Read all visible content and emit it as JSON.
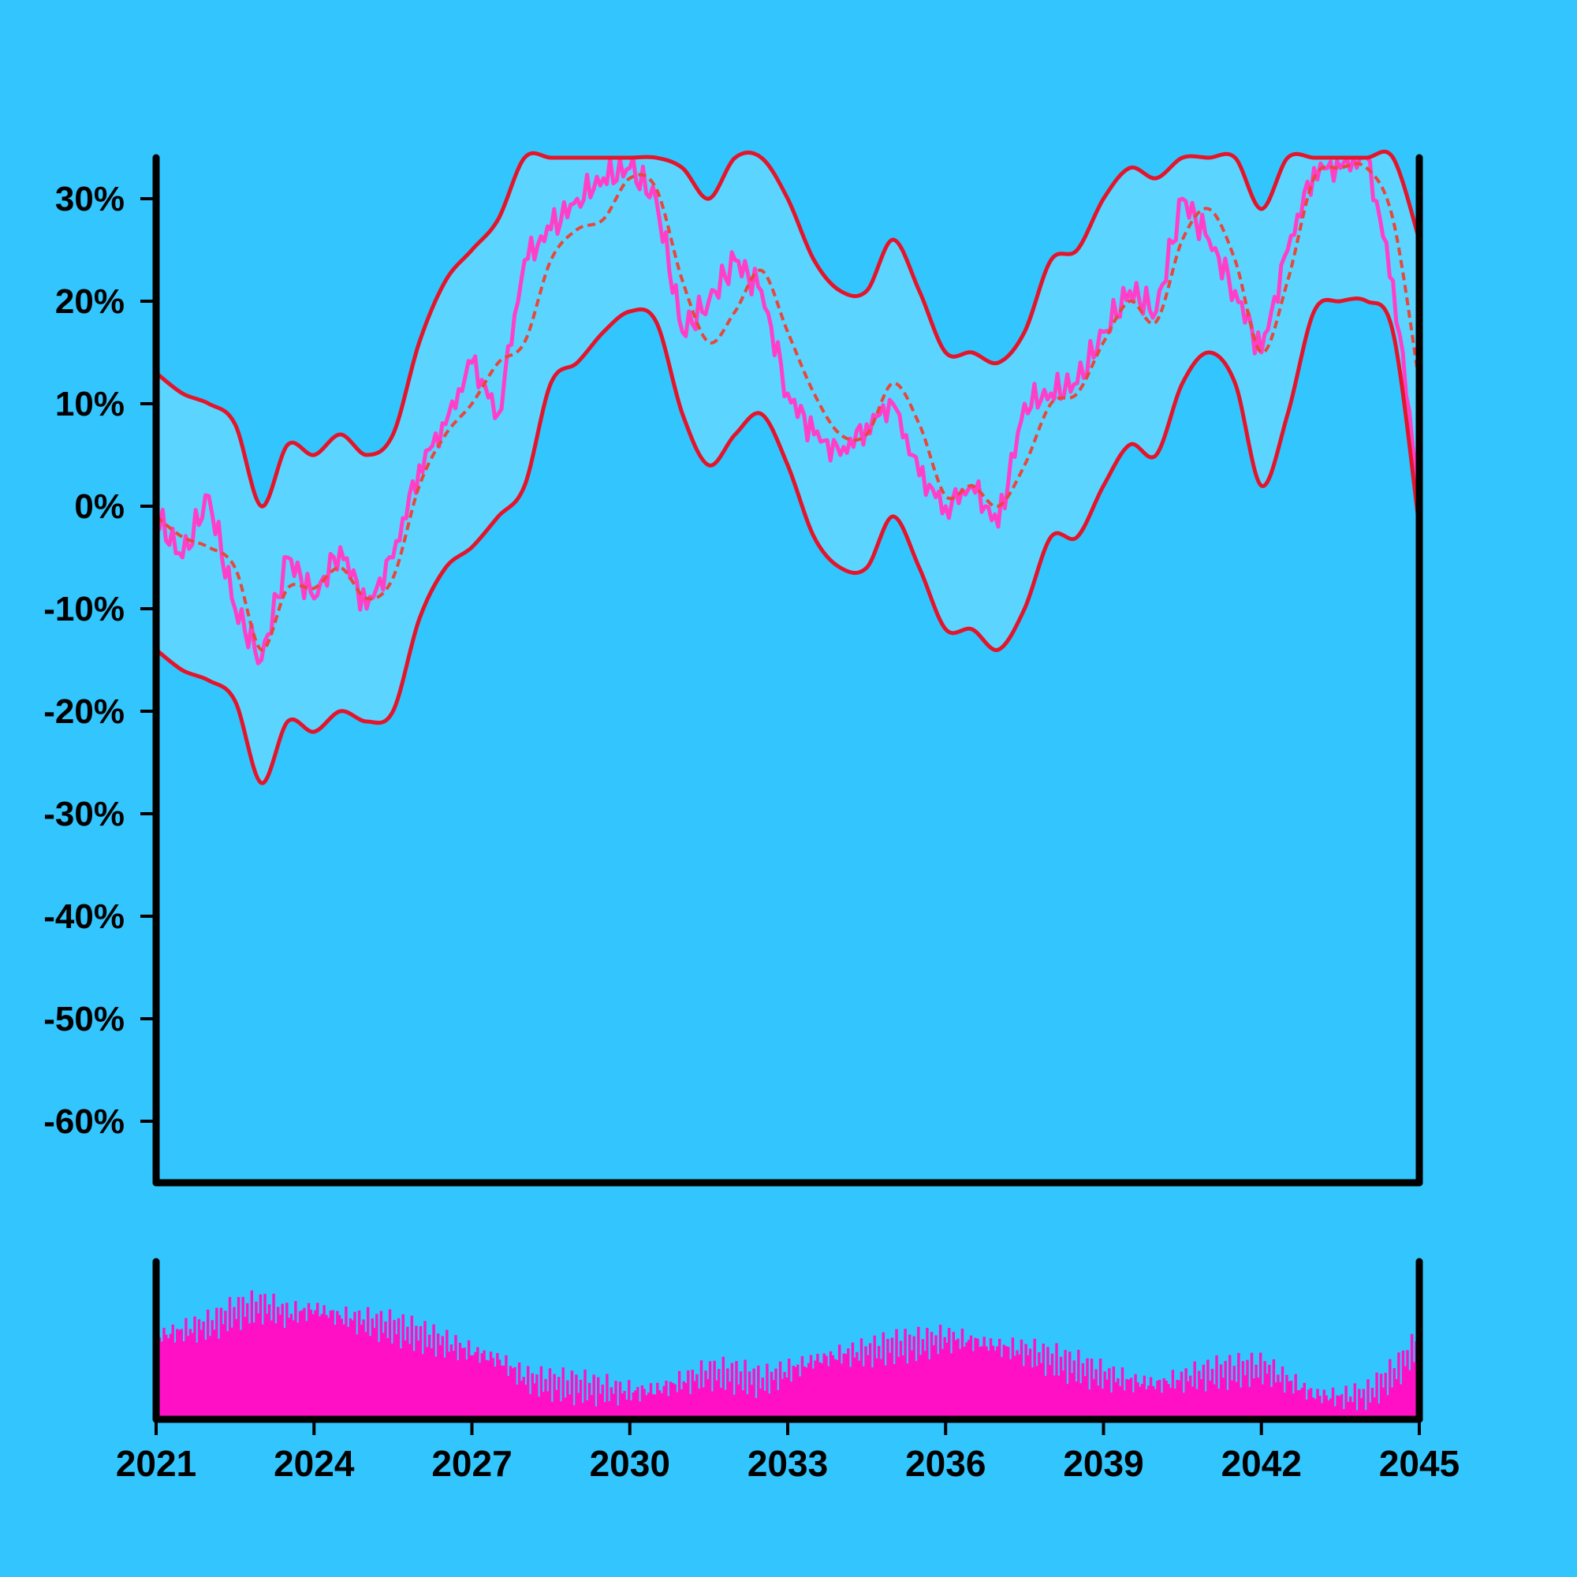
{
  "colors": {
    "background": "#33c5fd",
    "band_fill": "#5bd4ff",
    "band_edge": "#e3152b",
    "trend": "#e8473a",
    "series": "#ff3fc8",
    "volume": "#ff10c4",
    "axis": "#000000"
  },
  "chart_data": [
    {
      "type": "line",
      "title": "",
      "xlabel": "",
      "ylabel": "",
      "xlim": [
        2021,
        2045
      ],
      "ylim": [
        -66,
        34
      ],
      "y_unit": "%",
      "grid": false,
      "legend": "none",
      "y_ticks": [
        {
          "value": 30,
          "label": "30%"
        },
        {
          "value": 20,
          "label": "20%"
        },
        {
          "value": 10,
          "label": "10%"
        },
        {
          "value": 0,
          "label": "0%"
        },
        {
          "value": -10,
          "label": "-10%"
        },
        {
          "value": -20,
          "label": "-20%"
        },
        {
          "value": -30,
          "label": "-30%"
        },
        {
          "value": -40,
          "label": "-40%"
        },
        {
          "value": -50,
          "label": "-50%"
        },
        {
          "value": -60,
          "label": "-60%"
        }
      ],
      "x": [
        2021.0,
        2021.5,
        2022.0,
        2022.5,
        2023.0,
        2023.5,
        2024.0,
        2024.5,
        2025.0,
        2025.5,
        2026.0,
        2026.5,
        2027.0,
        2027.5,
        2028.0,
        2028.5,
        2029.0,
        2029.5,
        2030.0,
        2030.5,
        2031.0,
        2031.5,
        2032.0,
        2032.5,
        2033.0,
        2033.5,
        2034.0,
        2034.5,
        2035.0,
        2035.5,
        2036.0,
        2036.5,
        2037.0,
        2037.5,
        2038.0,
        2038.5,
        2039.0,
        2039.5,
        2040.0,
        2040.5,
        2041.0,
        2041.5,
        2042.0,
        2042.5,
        2043.0,
        2043.5,
        2044.0,
        2044.5,
        2045.0
      ],
      "series": [
        {
          "role": "upper_band",
          "style": "solid",
          "values": [
            13,
            11,
            10,
            8,
            0,
            6,
            5,
            7,
            5,
            7,
            16,
            22,
            25,
            28,
            34,
            34,
            34,
            34,
            34,
            34,
            33,
            30,
            34,
            34,
            30,
            24,
            21,
            21,
            26,
            21,
            15,
            15,
            14,
            17,
            24,
            25,
            30,
            33,
            32,
            34,
            34,
            34,
            29,
            34,
            34,
            34,
            34,
            34,
            26
          ]
        },
        {
          "role": "lower_band",
          "style": "solid",
          "values": [
            -14,
            -16,
            -17,
            -19,
            -27,
            -21,
            -22,
            -20,
            -21,
            -20,
            -11,
            -6,
            -4,
            -1,
            2,
            12,
            14,
            17,
            19,
            18,
            9,
            4,
            7,
            9,
            4,
            -3,
            -6,
            -6,
            -1,
            -6,
            -12,
            -12,
            -14,
            -10,
            -3,
            -3,
            2,
            6,
            5,
            12,
            15,
            12,
            2,
            9,
            19,
            20,
            20,
            17,
            -2
          ]
        },
        {
          "role": "trend",
          "style": "dashed",
          "values": [
            -1,
            -3,
            -4,
            -6,
            -14,
            -8,
            -8,
            -6,
            -9,
            -7,
            2,
            7,
            10,
            14,
            16,
            24,
            27,
            28,
            32,
            31,
            22,
            16,
            19,
            23,
            17,
            11,
            7,
            7,
            12,
            8,
            1,
            2,
            0,
            4,
            10,
            11,
            16,
            20,
            18,
            26,
            29,
            24,
            15,
            22,
            32,
            33,
            33,
            28,
            12
          ]
        },
        {
          "role": "series",
          "style": "jagged",
          "values": [
            -1,
            -5,
            1,
            -10,
            -15,
            -5,
            -9,
            -4,
            -10,
            -5,
            4,
            8,
            14,
            9,
            24,
            27,
            30,
            32,
            33,
            30,
            17,
            20,
            24,
            21,
            11,
            7,
            5,
            8,
            10,
            3,
            0,
            2,
            -2,
            10,
            11,
            12,
            17,
            21,
            19,
            30,
            26,
            21,
            15,
            25,
            33,
            33,
            34,
            22,
            1
          ]
        }
      ]
    },
    {
      "type": "bar",
      "role": "volume",
      "xlim": [
        2021,
        2045
      ],
      "x_ticks": [
        {
          "value": 2021,
          "label": "2021"
        },
        {
          "value": 2024,
          "label": "2024"
        },
        {
          "value": 2027,
          "label": "2027"
        },
        {
          "value": 2030,
          "label": "2030"
        },
        {
          "value": 2033,
          "label": "2033"
        },
        {
          "value": 2036,
          "label": "2036"
        },
        {
          "value": 2039,
          "label": "2039"
        },
        {
          "value": 2042,
          "label": "2042"
        },
        {
          "value": 2045,
          "label": "2045"
        }
      ],
      "ylim": [
        0,
        1
      ],
      "x": [
        2021.0,
        2021.5,
        2022.0,
        2022.5,
        2023.0,
        2023.5,
        2024.0,
        2024.5,
        2025.0,
        2025.5,
        2026.0,
        2026.5,
        2027.0,
        2027.5,
        2028.0,
        2028.5,
        2029.0,
        2029.5,
        2030.0,
        2030.5,
        2031.0,
        2031.5,
        2032.0,
        2032.5,
        2033.0,
        2033.5,
        2034.0,
        2034.5,
        2035.0,
        2035.5,
        2036.0,
        2036.5,
        2037.0,
        2037.5,
        2038.0,
        2038.5,
        2039.0,
        2039.5,
        2040.0,
        2040.5,
        2041.0,
        2041.5,
        2042.0,
        2042.5,
        2043.0,
        2043.5,
        2044.0,
        2044.5,
        2045.0
      ],
      "values": [
        0.62,
        0.66,
        0.7,
        0.8,
        0.84,
        0.78,
        0.82,
        0.76,
        0.72,
        0.68,
        0.62,
        0.56,
        0.5,
        0.44,
        0.3,
        0.26,
        0.24,
        0.22,
        0.2,
        0.22,
        0.28,
        0.34,
        0.32,
        0.28,
        0.36,
        0.44,
        0.48,
        0.5,
        0.54,
        0.56,
        0.6,
        0.58,
        0.54,
        0.5,
        0.44,
        0.38,
        0.32,
        0.28,
        0.26,
        0.3,
        0.34,
        0.36,
        0.38,
        0.28,
        0.18,
        0.16,
        0.18,
        0.34,
        0.58
      ]
    }
  ]
}
